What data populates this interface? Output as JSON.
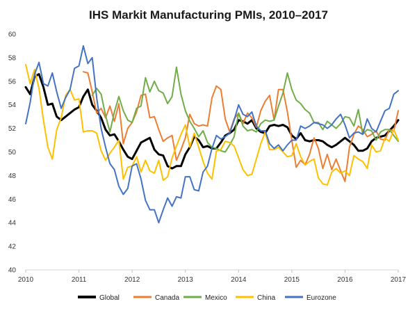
{
  "chart_data": {
    "type": "line",
    "title": "IHS Markit Manufacturing PMIs, 2010–2017",
    "xlabel": "",
    "ylabel": "",
    "xlim": [
      2010,
      2017
    ],
    "ylim": [
      40,
      60
    ],
    "x_ticks": [
      2010,
      2011,
      2012,
      2013,
      2014,
      2015,
      2016,
      2017
    ],
    "x_tick_labels": [
      "2010",
      "2011",
      "2012",
      "2013",
      "2014",
      "2015",
      "2016",
      "2017"
    ],
    "y_ticks": [
      40,
      42,
      44,
      46,
      48,
      50,
      52,
      54,
      56,
      58,
      60
    ],
    "y_tick_labels": [
      "40",
      "42",
      "44",
      "46",
      "48",
      "50",
      "52",
      "54",
      "56",
      "58",
      "60"
    ],
    "grid": false,
    "legend_position": "bottom",
    "series": [
      {
        "name": "Global",
        "color": "#000000",
        "width": 3,
        "x": [
          2010.0,
          2010.083,
          2010.167,
          2010.25,
          2010.333,
          2010.417,
          2010.5,
          2010.583,
          2010.667,
          2010.75,
          2010.833,
          2010.917,
          2011.0,
          2011.083,
          2011.167,
          2011.25,
          2011.333,
          2011.417,
          2011.5,
          2011.583,
          2011.667,
          2011.75,
          2011.833,
          2011.917,
          2012.0,
          2012.083,
          2012.167,
          2012.25,
          2012.333,
          2012.417,
          2012.5,
          2012.583,
          2012.667,
          2012.75,
          2012.833,
          2012.917,
          2013.0,
          2013.083,
          2013.167,
          2013.25,
          2013.333,
          2013.417,
          2013.5,
          2013.583,
          2013.667,
          2013.75,
          2013.833,
          2013.917,
          2014.0,
          2014.083,
          2014.167,
          2014.25,
          2014.333,
          2014.417,
          2014.5,
          2014.583,
          2014.667,
          2014.75,
          2014.833,
          2014.917,
          2015.0,
          2015.083,
          2015.167,
          2015.25,
          2015.333,
          2015.417,
          2015.5,
          2015.583,
          2015.667,
          2015.75,
          2015.833,
          2015.917,
          2016.0,
          2016.083,
          2016.167,
          2016.25,
          2016.333,
          2016.417,
          2016.5,
          2016.583,
          2016.667,
          2016.75,
          2016.833,
          2016.917,
          2017.0
        ],
        "values": [
          55.5,
          54.9,
          56.4,
          56.6,
          55.5,
          54.0,
          54.1,
          53.0,
          52.7,
          53.0,
          53.3,
          53.6,
          53.8,
          54.7,
          55.3,
          54.0,
          53.5,
          52.9,
          51.9,
          51.4,
          51.5,
          50.9,
          50.2,
          49.6,
          49.4,
          50.1,
          50.8,
          51.0,
          51.2,
          50.2,
          49.8,
          49.7,
          48.8,
          48.6,
          48.8,
          48.8,
          49.8,
          50.4,
          51.3,
          51.0,
          50.4,
          50.5,
          50.3,
          50.3,
          50.8,
          51.4,
          51.6,
          51.9,
          52.7,
          52.6,
          52.4,
          52.7,
          52.0,
          51.7,
          51.6,
          52.2,
          52.3,
          52.2,
          52.3,
          52.1,
          51.4,
          51.1,
          51.6,
          51.0,
          50.9,
          51.0,
          51.0,
          50.9,
          50.6,
          50.4,
          50.6,
          50.9,
          51.2,
          50.9,
          50.6,
          50.1,
          50.1,
          50.3,
          50.9,
          51.2,
          51.3,
          51.4,
          51.8,
          52.2,
          52.7
        ]
      },
      {
        "name": "Canada",
        "color": "#ED7D31",
        "width": 2,
        "x": [
          2011.083,
          2011.167,
          2011.25,
          2011.333,
          2011.417,
          2011.5,
          2011.583,
          2011.667,
          2011.75,
          2011.833,
          2011.917,
          2012.0,
          2012.083,
          2012.167,
          2012.25,
          2012.333,
          2012.417,
          2012.5,
          2012.583,
          2012.667,
          2012.75,
          2012.833,
          2012.917,
          2013.0,
          2013.083,
          2013.167,
          2013.25,
          2013.333,
          2013.417,
          2013.5,
          2013.583,
          2013.667,
          2013.75,
          2013.833,
          2013.917,
          2014.0,
          2014.083,
          2014.167,
          2014.25,
          2014.333,
          2014.417,
          2014.5,
          2014.583,
          2014.667,
          2014.75,
          2014.833,
          2014.917,
          2015.0,
          2015.083,
          2015.167,
          2015.25,
          2015.333,
          2015.417,
          2015.5,
          2015.583,
          2015.667,
          2015.75,
          2015.833,
          2015.917,
          2016.0,
          2016.083,
          2016.167,
          2016.25,
          2016.333,
          2016.417,
          2016.5,
          2016.583,
          2016.667,
          2016.75,
          2016.833,
          2016.917,
          2017.0
        ],
        "values": [
          56.8,
          56.7,
          55.1,
          53.3,
          53.7,
          52.9,
          53.9,
          52.6,
          54.1,
          50.7,
          52.0,
          52.5,
          53.4,
          54.8,
          54.9,
          52.9,
          53.0,
          51.9,
          50.9,
          51.2,
          51.4,
          49.3,
          50.2,
          51.2,
          53.2,
          52.4,
          52.2,
          52.3,
          52.2,
          54.6,
          55.6,
          55.3,
          52.8,
          51.7,
          52.8,
          53.3,
          52.4,
          53.3,
          52.9,
          52.1,
          53.5,
          54.3,
          54.8,
          52.7,
          55.3,
          55.3,
          53.4,
          51.0,
          48.7,
          49.3,
          48.9,
          49.8,
          51.2,
          50.3,
          48.6,
          49.8,
          48.5,
          49.4,
          48.4,
          47.5,
          50.4,
          51.5,
          52.2,
          51.9,
          51.3,
          51.5,
          51.8,
          51.1,
          51.0,
          51.9,
          51.8,
          53.5
        ]
      },
      {
        "name": "Mexico",
        "color": "#70AD47",
        "width": 2,
        "x": [
          2011.25,
          2011.333,
          2011.417,
          2011.5,
          2011.583,
          2011.667,
          2011.75,
          2011.833,
          2011.917,
          2012.0,
          2012.083,
          2012.167,
          2012.25,
          2012.333,
          2012.417,
          2012.5,
          2012.583,
          2012.667,
          2012.75,
          2012.833,
          2012.917,
          2013.0,
          2013.083,
          2013.167,
          2013.25,
          2013.333,
          2013.417,
          2013.5,
          2013.583,
          2013.667,
          2013.75,
          2013.833,
          2013.917,
          2014.0,
          2014.083,
          2014.167,
          2014.25,
          2014.333,
          2014.417,
          2014.5,
          2014.583,
          2014.667,
          2014.75,
          2014.833,
          2014.917,
          2015.0,
          2015.083,
          2015.167,
          2015.25,
          2015.333,
          2015.417,
          2015.5,
          2015.583,
          2015.667,
          2015.75,
          2015.833,
          2015.917,
          2016.0,
          2016.083,
          2016.167,
          2016.25,
          2016.333,
          2016.417,
          2016.5,
          2016.583,
          2016.667,
          2016.75,
          2016.833,
          2016.917,
          2017.0
        ],
        "values": [
          54.8,
          55.4,
          54.9,
          53.1,
          51.7,
          53.4,
          54.7,
          53.5,
          52.7,
          52.5,
          53.7,
          53.9,
          56.3,
          55.1,
          56.0,
          55.2,
          55.0,
          54.1,
          54.7,
          57.2,
          54.9,
          53.5,
          52.6,
          52.0,
          51.3,
          51.8,
          50.8,
          50.4,
          50.3,
          50.1,
          50.0,
          50.6,
          51.3,
          53.3,
          52.2,
          51.8,
          51.9,
          51.7,
          52.4,
          52.7,
          52.6,
          52.7,
          53.9,
          55.0,
          56.7,
          55.3,
          54.4,
          54.1,
          53.6,
          53.3,
          52.5,
          52.5,
          51.9,
          52.6,
          52.3,
          52.0,
          52.4,
          53.0,
          52.9,
          52.2,
          53.6,
          51.5,
          51.9,
          51.8,
          51.0,
          51.7,
          51.9,
          51.9,
          51.4,
          50.9
        ]
      },
      {
        "name": "China",
        "color": "#FFC000",
        "width": 2,
        "x": [
          2010.0,
          2010.083,
          2010.167,
          2010.25,
          2010.333,
          2010.417,
          2010.5,
          2010.583,
          2010.667,
          2010.75,
          2010.833,
          2010.917,
          2011.0,
          2011.083,
          2011.167,
          2011.25,
          2011.333,
          2011.417,
          2011.5,
          2011.583,
          2011.667,
          2011.75,
          2011.833,
          2011.917,
          2012.0,
          2012.083,
          2012.167,
          2012.25,
          2012.333,
          2012.417,
          2012.5,
          2012.583,
          2012.667,
          2012.75,
          2012.833,
          2012.917,
          2013.0,
          2013.083,
          2013.167,
          2013.25,
          2013.333,
          2013.417,
          2013.5,
          2013.583,
          2013.667,
          2013.75,
          2013.833,
          2013.917,
          2014.0,
          2014.083,
          2014.167,
          2014.25,
          2014.333,
          2014.417,
          2014.5,
          2014.583,
          2014.667,
          2014.75,
          2014.833,
          2014.917,
          2015.0,
          2015.083,
          2015.167,
          2015.25,
          2015.333,
          2015.417,
          2015.5,
          2015.583,
          2015.667,
          2015.75,
          2015.833,
          2015.917,
          2016.0,
          2016.083,
          2016.167,
          2016.25,
          2016.333,
          2016.417,
          2016.5,
          2016.583,
          2016.667,
          2016.75,
          2016.833,
          2016.917,
          2017.0
        ],
        "values": [
          57.4,
          55.8,
          57.0,
          55.4,
          52.7,
          50.4,
          49.4,
          51.9,
          52.9,
          54.8,
          55.3,
          54.4,
          54.5,
          51.7,
          51.8,
          51.8,
          51.6,
          50.1,
          49.3,
          49.9,
          50.4,
          51.0,
          47.7,
          48.7,
          48.8,
          49.6,
          48.3,
          49.3,
          48.4,
          48.2,
          49.3,
          47.6,
          47.9,
          49.5,
          50.5,
          51.5,
          52.3,
          50.4,
          51.6,
          50.4,
          49.2,
          48.2,
          47.7,
          50.1,
          50.2,
          50.9,
          50.8,
          50.5,
          49.5,
          48.5,
          48.0,
          48.1,
          49.4,
          50.7,
          51.7,
          50.2,
          50.2,
          50.4,
          50.0,
          49.6,
          49.7,
          50.7,
          49.6,
          48.9,
          49.2,
          49.4,
          47.8,
          47.3,
          47.2,
          48.3,
          48.6,
          48.2,
          48.4,
          48.0,
          49.7,
          49.4,
          49.2,
          48.6,
          50.6,
          50.0,
          50.1,
          51.2,
          50.9,
          51.9,
          51.0
        ]
      },
      {
        "name": "Eurozone",
        "color": "#4472C4",
        "width": 2,
        "x": [
          2010.0,
          2010.083,
          2010.167,
          2010.25,
          2010.333,
          2010.417,
          2010.5,
          2010.583,
          2010.667,
          2010.75,
          2010.833,
          2010.917,
          2011.0,
          2011.083,
          2011.167,
          2011.25,
          2011.333,
          2011.417,
          2011.5,
          2011.583,
          2011.667,
          2011.75,
          2011.833,
          2011.917,
          2012.0,
          2012.083,
          2012.167,
          2012.25,
          2012.333,
          2012.417,
          2012.5,
          2012.583,
          2012.667,
          2012.75,
          2012.833,
          2012.917,
          2013.0,
          2013.083,
          2013.167,
          2013.25,
          2013.333,
          2013.417,
          2013.5,
          2013.583,
          2013.667,
          2013.75,
          2013.833,
          2013.917,
          2014.0,
          2014.083,
          2014.167,
          2014.25,
          2014.333,
          2014.417,
          2014.5,
          2014.583,
          2014.667,
          2014.75,
          2014.833,
          2014.917,
          2015.0,
          2015.083,
          2015.167,
          2015.25,
          2015.333,
          2015.417,
          2015.5,
          2015.583,
          2015.667,
          2015.75,
          2015.833,
          2015.917,
          2016.0,
          2016.083,
          2016.167,
          2016.25,
          2016.333,
          2016.417,
          2016.5,
          2016.583,
          2016.667,
          2016.75,
          2016.833,
          2016.917,
          2017.0
        ],
        "values": [
          52.4,
          54.2,
          56.6,
          57.6,
          55.8,
          55.6,
          56.7,
          55.1,
          53.7,
          54.6,
          55.3,
          57.1,
          57.3,
          59.0,
          57.5,
          58.0,
          54.6,
          52.0,
          50.4,
          49.0,
          48.5,
          47.1,
          46.4,
          46.9,
          48.8,
          49.0,
          47.7,
          45.9,
          45.1,
          45.1,
          44.0,
          45.1,
          46.1,
          45.4,
          46.2,
          46.1,
          47.9,
          47.9,
          46.8,
          46.7,
          48.3,
          48.8,
          50.3,
          51.4,
          51.1,
          51.3,
          51.6,
          52.7,
          54.0,
          53.2,
          53.0,
          53.4,
          52.2,
          51.8,
          51.8,
          50.7,
          50.3,
          50.6,
          50.1,
          50.6,
          51.0,
          51.0,
          52.2,
          52.0,
          52.2,
          52.5,
          52.4,
          52.3,
          52.0,
          52.3,
          52.8,
          53.2,
          52.3,
          51.2,
          51.6,
          51.7,
          51.5,
          52.8,
          52.0,
          51.7,
          52.6,
          53.5,
          53.7,
          54.9,
          55.2
        ]
      }
    ]
  }
}
